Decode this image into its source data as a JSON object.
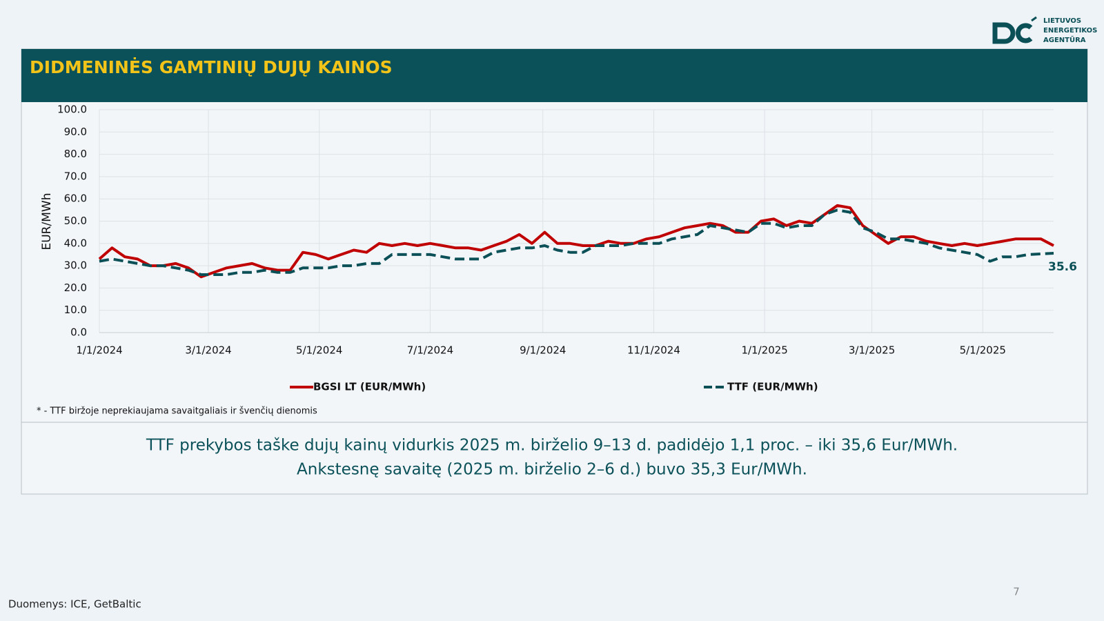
{
  "logo": [
    "LIETUVOS",
    "ENERGETIKOS",
    "AGENTŪRA"
  ],
  "header": {
    "title": "DIDMENINĖS GAMTINIŲ DUJŲ KAINOS"
  },
  "chart_data": {
    "type": "line",
    "y_label": "EUR/MWh",
    "x": [
      "2024-01-01",
      "2024-01-08",
      "2024-01-15",
      "2024-01-22",
      "2024-01-29",
      "2024-02-05",
      "2024-02-12",
      "2024-02-19",
      "2024-02-26",
      "2024-03-04",
      "2024-03-11",
      "2024-03-18",
      "2024-03-25",
      "2024-04-01",
      "2024-04-08",
      "2024-04-15",
      "2024-04-22",
      "2024-04-29",
      "2024-05-06",
      "2024-05-13",
      "2024-05-20",
      "2024-05-27",
      "2024-06-03",
      "2024-06-10",
      "2024-06-17",
      "2024-06-24",
      "2024-07-01",
      "2024-07-08",
      "2024-07-15",
      "2024-07-22",
      "2024-07-29",
      "2024-08-05",
      "2024-08-12",
      "2024-08-19",
      "2024-08-26",
      "2024-09-02",
      "2024-09-09",
      "2024-09-16",
      "2024-09-23",
      "2024-09-30",
      "2024-10-07",
      "2024-10-14",
      "2024-10-21",
      "2024-10-28",
      "2024-11-04",
      "2024-11-11",
      "2024-11-18",
      "2024-11-25",
      "2024-12-02",
      "2024-12-09",
      "2024-12-16",
      "2024-12-23",
      "2024-12-30",
      "2025-01-06",
      "2025-01-13",
      "2025-01-20",
      "2025-01-27",
      "2025-02-03",
      "2025-02-10",
      "2025-02-17",
      "2025-02-24",
      "2025-03-03",
      "2025-03-10",
      "2025-03-17",
      "2025-03-24",
      "2025-03-31",
      "2025-04-07",
      "2025-04-14",
      "2025-04-21",
      "2025-04-28",
      "2025-05-05",
      "2025-05-12",
      "2025-05-19",
      "2025-05-26",
      "2025-06-02",
      "2025-06-09"
    ],
    "series": [
      {
        "name": "BGSI LT (EUR/MWh)",
        "color": "#c00000",
        "dash": false,
        "values": [
          33,
          38,
          34,
          33,
          30,
          30,
          31,
          29,
          25,
          27,
          29,
          30,
          31,
          29,
          28,
          28,
          36,
          35,
          33,
          35,
          37,
          36,
          40,
          39,
          40,
          39,
          40,
          39,
          38,
          38,
          37,
          39,
          41,
          44,
          40,
          45,
          40,
          40,
          39,
          39,
          41,
          40,
          40,
          42,
          43,
          45,
          47,
          48,
          49,
          48,
          45,
          45,
          50,
          51,
          48,
          50,
          49,
          53,
          57,
          56,
          48,
          44,
          40,
          43,
          43,
          41,
          40,
          39,
          40,
          39,
          40,
          41,
          42,
          42,
          42,
          39
        ]
      },
      {
        "name": "TTF (EUR/MWh)",
        "color": "#0b4f57",
        "dash": true,
        "values": [
          32,
          33,
          32,
          31,
          30,
          30,
          29,
          28,
          26,
          26,
          26,
          27,
          27,
          28,
          27,
          27,
          29,
          29,
          29,
          30,
          30,
          31,
          31,
          35,
          35,
          35,
          35,
          34,
          33,
          33,
          33,
          36,
          37,
          38,
          38,
          39,
          37,
          36,
          36,
          39,
          39,
          39,
          40,
          40,
          40,
          42,
          43,
          44,
          48,
          47,
          46,
          45,
          49,
          49,
          47,
          48,
          48,
          53,
          55,
          54,
          47,
          45,
          42,
          42,
          41,
          40,
          38,
          37,
          36,
          35,
          32,
          34,
          34,
          35,
          35.3,
          35.6
        ]
      }
    ],
    "xlim": [
      "2024-01-01",
      "2025-06-09"
    ],
    "xticks": [
      {
        "value": "2024-01-01",
        "label": "1/1/2024"
      },
      {
        "value": "2024-03-01",
        "label": "3/1/2024"
      },
      {
        "value": "2024-05-01",
        "label": "5/1/2024"
      },
      {
        "value": "2024-07-01",
        "label": "7/1/2024"
      },
      {
        "value": "2024-09-01",
        "label": "9/1/2024"
      },
      {
        "value": "2024-11-01",
        "label": "11/1/2024"
      },
      {
        "value": "2025-01-01",
        "label": "1/1/2025"
      },
      {
        "value": "2025-03-01",
        "label": "3/1/2025"
      },
      {
        "value": "2025-05-01",
        "label": "5/1/2025"
      }
    ],
    "ylim": [
      0,
      100
    ],
    "yticks": [
      {
        "value": 0,
        "label": "0.0"
      },
      {
        "value": 10,
        "label": "10.0"
      },
      {
        "value": 20,
        "label": "20.0"
      },
      {
        "value": 30,
        "label": "30.0"
      },
      {
        "value": 40,
        "label": "40.0"
      },
      {
        "value": 50,
        "label": "50.0"
      },
      {
        "value": 60,
        "label": "60.0"
      },
      {
        "value": 70,
        "label": "70.0"
      },
      {
        "value": 80,
        "label": "80.0"
      },
      {
        "value": 90,
        "label": "90.0"
      },
      {
        "value": 100,
        "label": "100.0"
      }
    ],
    "grid": true,
    "legend": "bottom",
    "footnote": "* - TTF biržoje neprekiaujama savaitgaliais ir švenčių dienomis"
  },
  "summary": [
    "TTF prekybos taške dujų kainų vidurkis 2025 m. birželio 9–13 d. padidėjo 1,1 proc. – iki 35,6 Eur/MWh.",
    "Ankstesnę savaitę (2025 m. birželio 2–6 d.) buvo 35,3 Eur/MWh."
  ],
  "source": "Duomenys: ICE, GetBaltic",
  "page_number": "7"
}
